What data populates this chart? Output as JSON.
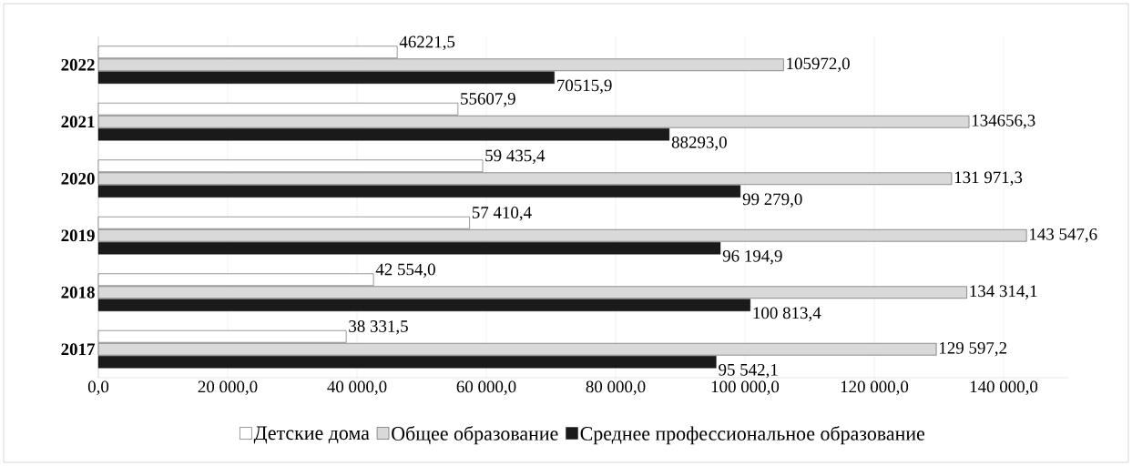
{
  "chart_data": {
    "type": "bar",
    "orientation": "horizontal",
    "categories": [
      "2022",
      "2021",
      "2020",
      "2019",
      "2018",
      "2017"
    ],
    "series": [
      {
        "name": "Детские дома",
        "color": "#ffffff",
        "values": [
          46221.5,
          55607.9,
          59435.4,
          57410.4,
          42554.0,
          38331.5
        ],
        "value_labels": [
          "46221,5",
          "55607,9",
          "59 435,4",
          "57 410,4",
          "42 554,0",
          "38 331,5"
        ]
      },
      {
        "name": "Общее образование",
        "color": "#d9d9d9",
        "values": [
          105972.0,
          134656.3,
          131971.3,
          143547.6,
          134314.1,
          129597.2
        ],
        "value_labels": [
          "105972,0",
          "134656,3",
          "131 971,3",
          "143 547,6",
          "134 314,1",
          "129 597,2"
        ]
      },
      {
        "name": "Среднее профессиональное образование",
        "color": "#1a1a1a",
        "values": [
          70515.9,
          88293.0,
          99279.0,
          96194.9,
          100813.4,
          95542.1
        ],
        "value_labels": [
          "70515,9",
          "88293,0",
          "99 279,0",
          "96 194,9",
          "100 813,4",
          "95 542,1"
        ]
      }
    ],
    "xlim": [
      0,
      150000
    ],
    "xticks": [
      {
        "value": 0,
        "label": "0,0"
      },
      {
        "value": 20000,
        "label": "20 000,0"
      },
      {
        "value": 40000,
        "label": "40 000,0"
      },
      {
        "value": 60000,
        "label": "60 000,0"
      },
      {
        "value": 80000,
        "label": "80 000,0"
      },
      {
        "value": 100000,
        "label": "100 000,0"
      },
      {
        "value": 120000,
        "label": "120 000,0"
      },
      {
        "value": 140000,
        "label": "140 000,0"
      }
    ],
    "grid": "x",
    "legend": "bottom"
  }
}
